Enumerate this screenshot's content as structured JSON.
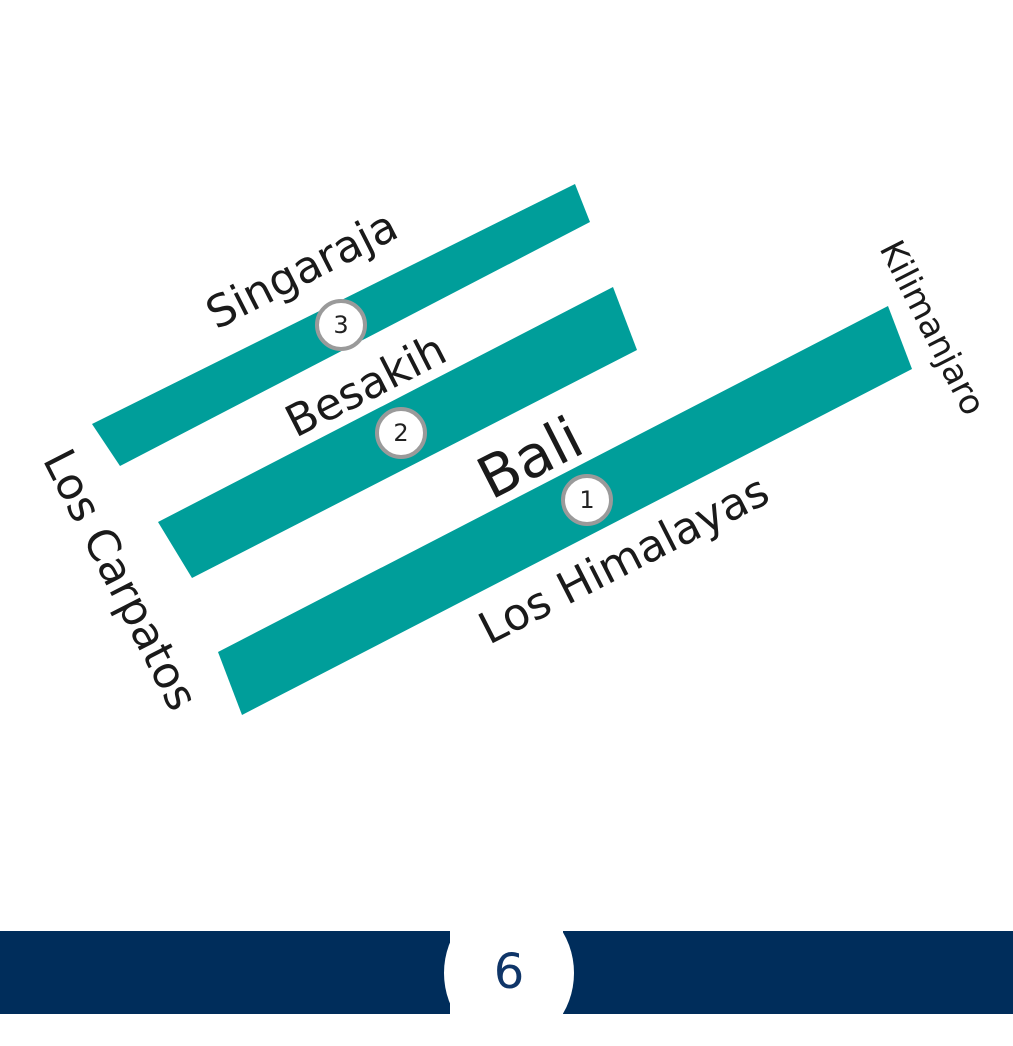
{
  "colors": {
    "band": "#009e9a",
    "footer": "#002d5b",
    "marker_border": "#9a9a9a",
    "page_number": "#0f3568"
  },
  "diagram": {
    "center_label": "Bali",
    "bands": [
      {
        "label": "Los Himalayas",
        "marker": "1"
      },
      {
        "label": "Besakih",
        "marker": "2"
      },
      {
        "label": "Singaraja",
        "marker": "3"
      }
    ],
    "side_labels": {
      "left": "Los Carpatos",
      "right": "Kilimanjaro"
    }
  },
  "footer": {
    "page_number": "6"
  }
}
